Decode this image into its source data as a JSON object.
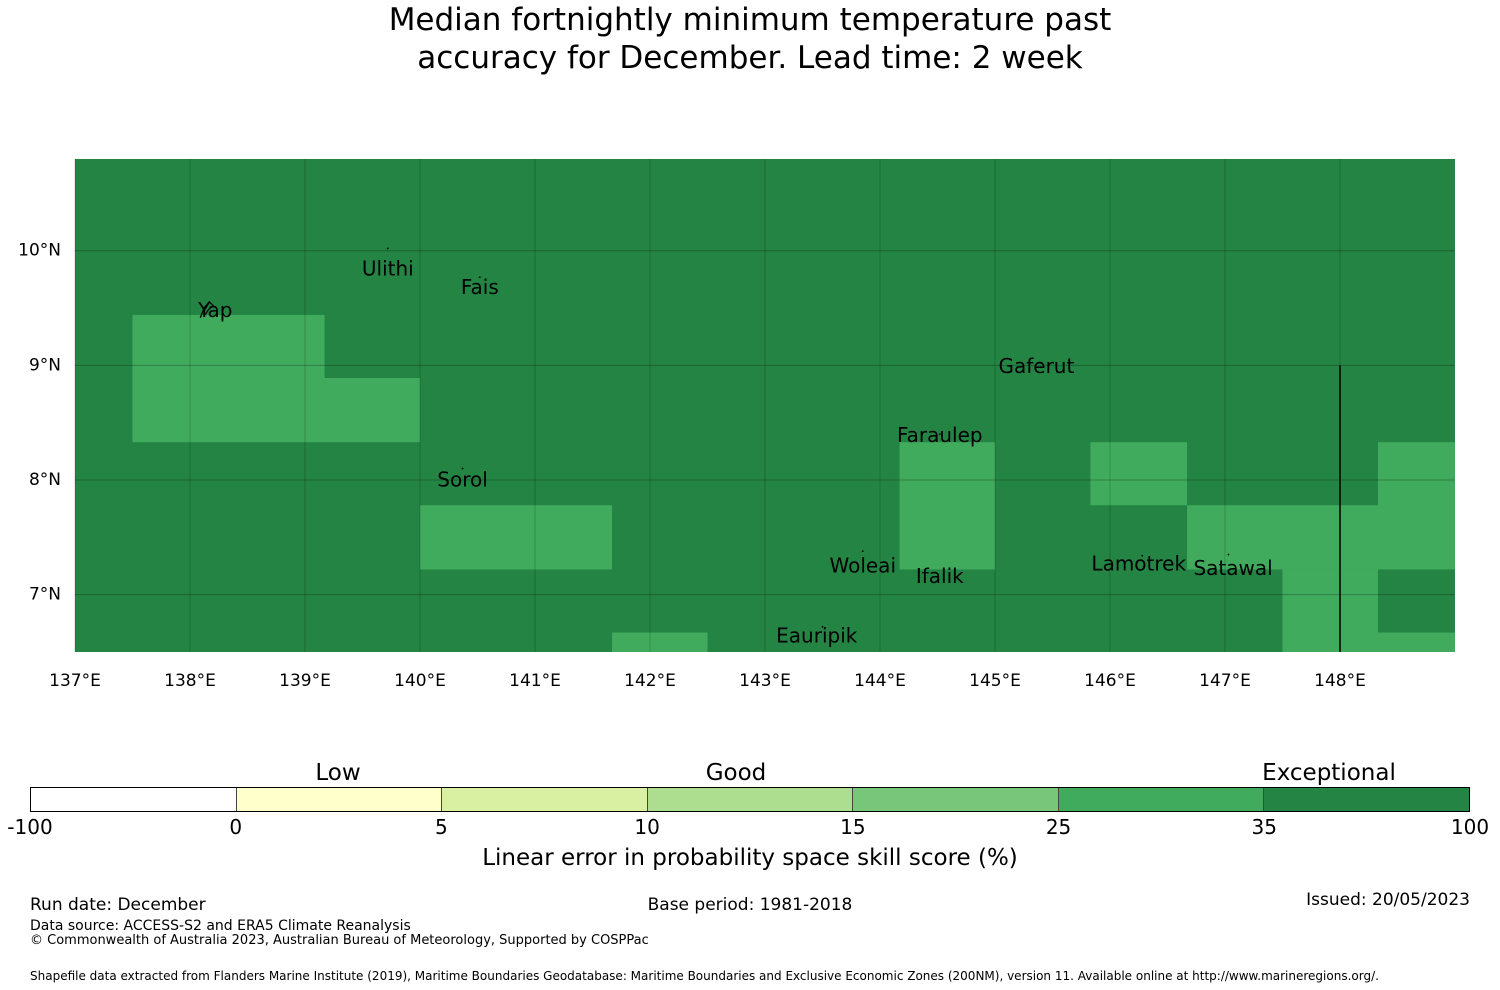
{
  "title_lines": [
    "Median fortnightly minimum temperature past",
    "accuracy for December. Lead time: 2 week"
  ],
  "map": {
    "lon_range": [
      137.0,
      149.0
    ],
    "lat_range": [
      6.5,
      10.8
    ],
    "lon_ticks": [
      "137°E",
      "138°E",
      "139°E",
      "140°E",
      "141°E",
      "142°E",
      "143°E",
      "144°E",
      "145°E",
      "146°E",
      "147°E",
      "148°E"
    ],
    "lon_tick_values": [
      137,
      138,
      139,
      140,
      141,
      142,
      143,
      144,
      145,
      146,
      147,
      148
    ],
    "lat_ticks": [
      "10°N",
      "9°N",
      "8°N",
      "7°N"
    ],
    "lat_tick_values": [
      10,
      9,
      8,
      7
    ],
    "background_category": "35-100",
    "cells": [
      {
        "lon": [
          137.5,
          139.17
        ],
        "lat": [
          8.33,
          9.44
        ],
        "category": "25-35"
      },
      {
        "lon": [
          139.17,
          140.0
        ],
        "lat": [
          8.33,
          8.89
        ],
        "category": "25-35"
      },
      {
        "lon": [
          140.0,
          141.67
        ],
        "lat": [
          7.22,
          7.78
        ],
        "category": "25-35"
      },
      {
        "lon": [
          141.67,
          142.5
        ],
        "lat": [
          6.5,
          6.67
        ],
        "category": "25-35"
      },
      {
        "lon": [
          144.17,
          145.0
        ],
        "lat": [
          7.22,
          8.33
        ],
        "category": "25-35"
      },
      {
        "lon": [
          145.83,
          146.67
        ],
        "lat": [
          7.78,
          8.33
        ],
        "category": "25-35"
      },
      {
        "lon": [
          146.67,
          148.33
        ],
        "lat": [
          7.22,
          7.78
        ],
        "category": "25-35"
      },
      {
        "lon": [
          147.5,
          148.33
        ],
        "lat": [
          6.5,
          7.22
        ],
        "category": "25-35"
      },
      {
        "lon": [
          148.33,
          149.0
        ],
        "lat": [
          7.22,
          8.33
        ],
        "category": "25-35"
      },
      {
        "lon": [
          148.33,
          149.0
        ],
        "lat": [
          6.5,
          6.67
        ],
        "category": "25-35"
      }
    ],
    "boundary_line": {
      "lon": 148.0,
      "lat": [
        6.5,
        9.0
      ]
    },
    "places": [
      {
        "name": "Ulithi",
        "lon": 139.72,
        "lat": 9.83
      },
      {
        "name": "Fais",
        "lon": 140.52,
        "lat": 9.67
      },
      {
        "name": "Yap",
        "lon": 138.22,
        "lat": 9.47
      },
      {
        "name": "Gaferut",
        "lon": 145.36,
        "lat": 8.98
      },
      {
        "name": "Faraulep",
        "lon": 144.52,
        "lat": 8.38
      },
      {
        "name": "Sorol",
        "lon": 140.37,
        "lat": 7.99
      },
      {
        "name": "Woleai",
        "lon": 143.85,
        "lat": 7.24
      },
      {
        "name": "Ifalik",
        "lon": 144.52,
        "lat": 7.15
      },
      {
        "name": "Lamotrek",
        "lon": 146.25,
        "lat": 7.26
      },
      {
        "name": "Satawal",
        "lon": 147.07,
        "lat": 7.22
      },
      {
        "name": "Eauripik",
        "lon": 143.45,
        "lat": 6.63
      }
    ]
  },
  "colorbar": {
    "categories": [
      "Low",
      "Good",
      "Exceptional"
    ],
    "ticks": [
      "-100",
      "0",
      "5",
      "10",
      "15",
      "25",
      "35",
      "100"
    ],
    "colors": [
      "#ffffff",
      "#ffffcc",
      "#d9f0a3",
      "#addd8e",
      "#78c679",
      "#41ab5d",
      "#238443"
    ],
    "title": "Linear error in probability space skill score (%)"
  },
  "colors": {
    "cat_25_35": "#41ab5d",
    "cat_35_100": "#238443"
  },
  "footer": {
    "run_date": "Run date: December",
    "base_period": "Base period: 1981-2018",
    "issued": "Issued: 20/05/2023",
    "data_source": "Data source: ACCESS-S2 and ERA5 Climate Reanalysis",
    "copyright": "© Commonwealth of Australia 2023, Australian Bureau of Meteorology, Supported by COSPPac",
    "shapefile": "Shapefile data extracted from Flanders Marine Institute (2019), Maritime Boundaries Geodatabase: Maritime Boundaries and Exclusive Economic Zones (200NM), version 11. Available online at http://www.marineregions.org/."
  }
}
